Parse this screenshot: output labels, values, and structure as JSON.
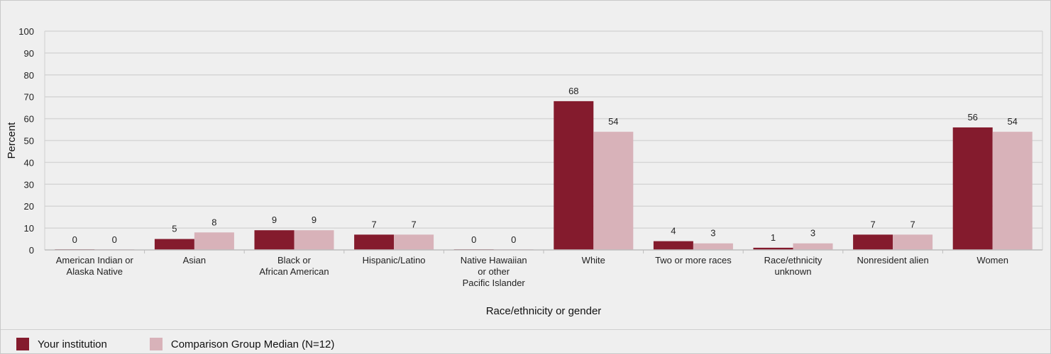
{
  "chart_data": {
    "type": "bar",
    "title": "",
    "xlabel": "Race/ethnicity or gender",
    "ylabel": "Percent",
    "ylim": [
      0,
      100
    ],
    "yticks": [
      0,
      10,
      20,
      30,
      40,
      50,
      60,
      70,
      80,
      90,
      100
    ],
    "grid": true,
    "legend_position": "bottom",
    "categories": [
      [
        "American Indian or",
        "Alaska Native"
      ],
      [
        "Asian"
      ],
      [
        "Black or",
        "African American"
      ],
      [
        "Hispanic/Latino"
      ],
      [
        "Native Hawaiian",
        "or other",
        "Pacific Islander"
      ],
      [
        "White"
      ],
      [
        "Two or more races"
      ],
      [
        "Race/ethnicity",
        "unknown"
      ],
      [
        "Nonresident alien"
      ],
      [
        "Women"
      ]
    ],
    "series": [
      {
        "name": "Your institution",
        "color": "#841b2d",
        "values": [
          0,
          5,
          9,
          7,
          0,
          68,
          4,
          1,
          7,
          56
        ],
        "bar_heights": [
          0.3,
          5,
          9,
          7,
          0.3,
          68,
          4,
          1,
          7,
          56
        ]
      },
      {
        "name": "Comparison Group Median (N=12)",
        "color": "#d8b2b9",
        "values": [
          0,
          8,
          9,
          7,
          0,
          54,
          3,
          3,
          7,
          54
        ],
        "bar_heights": [
          0.3,
          8,
          9,
          7,
          0.3,
          54,
          3,
          3,
          7,
          54
        ]
      }
    ]
  }
}
